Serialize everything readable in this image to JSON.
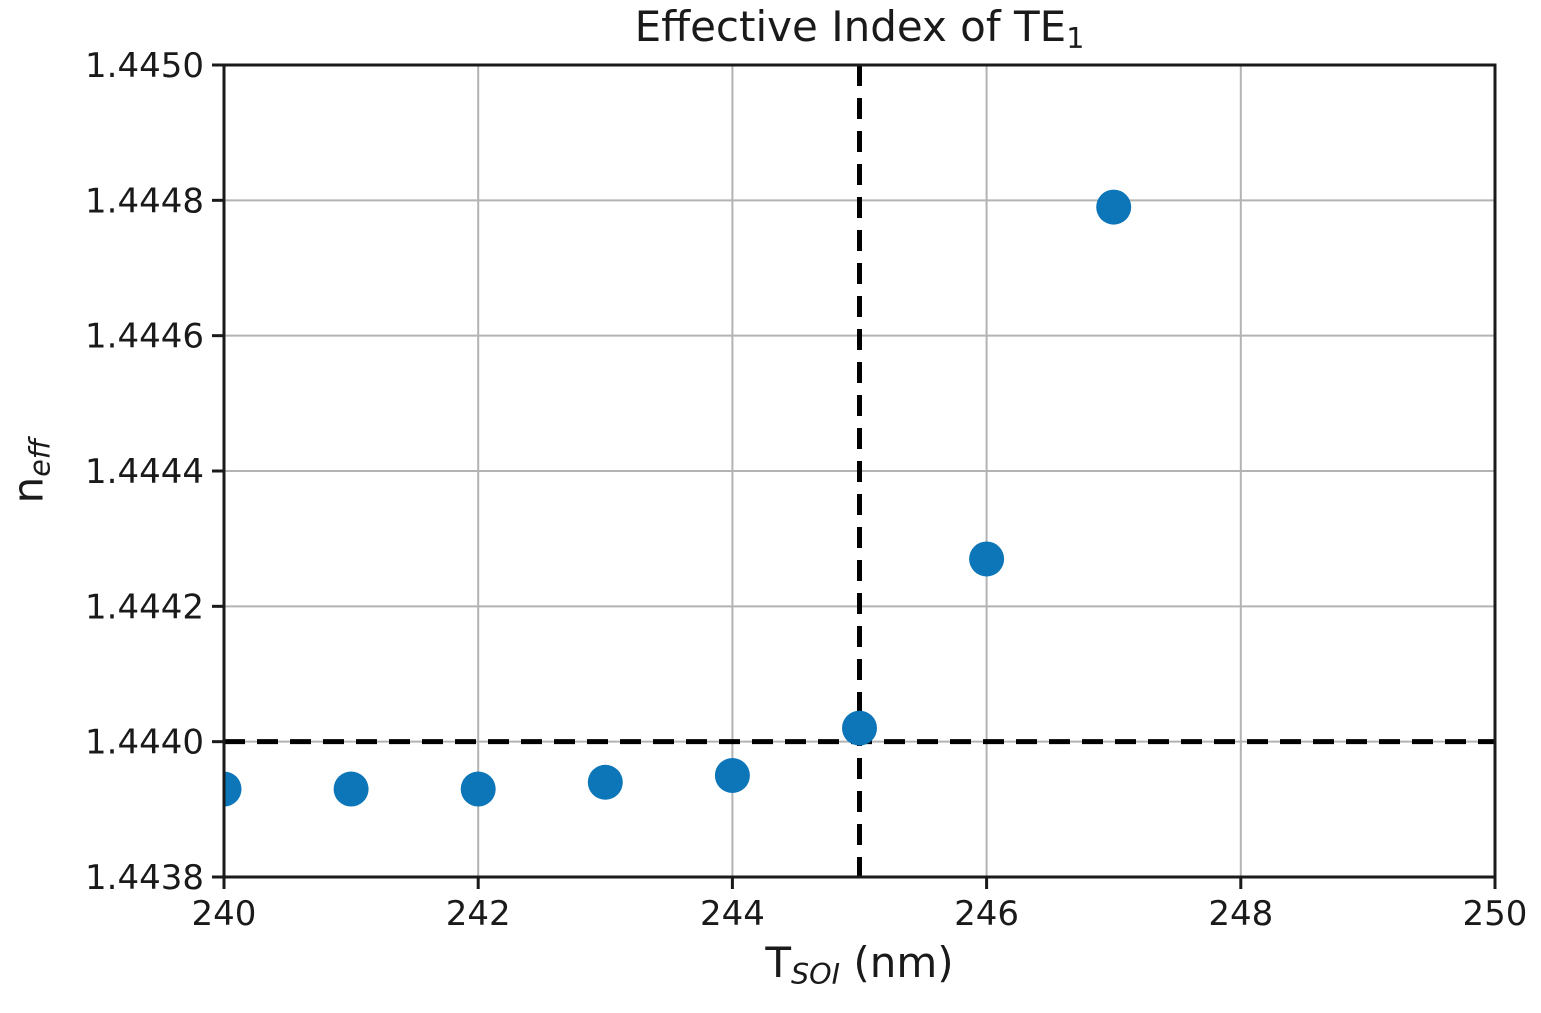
{
  "figure": {
    "title": {
      "main": "Effective Index of TE",
      "sub": "1"
    },
    "xlabel": {
      "main": "T",
      "sub": "SOI",
      "suffix": " (nm)"
    },
    "ylabel": {
      "main": "n",
      "sub": "eff"
    }
  },
  "chart_data": {
    "type": "scatter",
    "title": "Effective Index of TE₁",
    "xlabel": "T_SOI (nm)",
    "ylabel": "n_eff",
    "x": [
      240,
      241,
      242,
      243,
      244,
      245,
      246,
      247
    ],
    "y": [
      1.44393,
      1.44393,
      1.44393,
      1.44394,
      1.44395,
      1.44402,
      1.44427,
      1.44479
    ],
    "xlim": [
      240,
      250
    ],
    "ylim": [
      1.4438,
      1.445
    ],
    "xticks": [
      240,
      242,
      244,
      246,
      248,
      250
    ],
    "xtick_labels": [
      "240",
      "242",
      "244",
      "246",
      "248",
      "250"
    ],
    "yticks": [
      1.4438,
      1.444,
      1.4442,
      1.4444,
      1.4446,
      1.4448,
      1.445
    ],
    "ytick_labels": [
      "1.4438",
      "1.4440",
      "1.4442",
      "1.4444",
      "1.4446",
      "1.4448",
      "1.4450"
    ],
    "grid": true,
    "legend": "none",
    "reference_lines": {
      "horizontal_y": 1.444,
      "vertical_x": 245
    },
    "marker_radius_px": 17.5,
    "colors": {
      "marker": "#0d76b8",
      "grid": "#b3b3b3",
      "spine": "#1a1a1a",
      "reference": "#000000",
      "background": "#ffffff"
    }
  }
}
